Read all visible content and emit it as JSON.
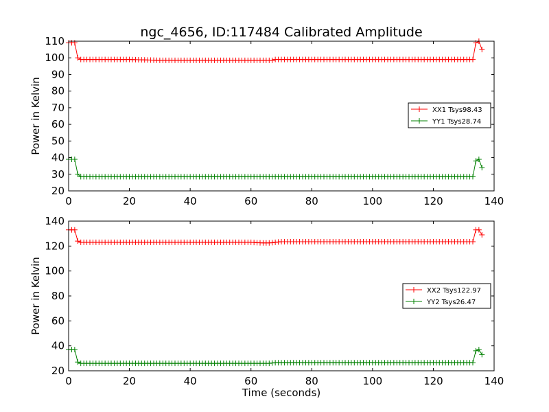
{
  "chart_data": [
    {
      "type": "line",
      "title": "ngc_4656, ID:117484 Calibrated Amplitude",
      "xlabel": "",
      "ylabel": "Power in Kelvin",
      "xlim": [
        0,
        140
      ],
      "ylim": [
        20,
        110
      ],
      "xticks": [
        "0",
        "20",
        "40",
        "60",
        "80",
        "100",
        "120",
        "140"
      ],
      "yticks": [
        "20",
        "30",
        "40",
        "50",
        "60",
        "70",
        "80",
        "90",
        "100",
        "110"
      ],
      "grid": false,
      "legend_position": "center-right",
      "series": [
        {
          "name": "XX1 Tsys98.43",
          "color": "#ff0000",
          "x": [
            0,
            1,
            2,
            3,
            4,
            5,
            10,
            20,
            30,
            40,
            50,
            60,
            67,
            68,
            70,
            80,
            90,
            100,
            110,
            120,
            130,
            133,
            134,
            135,
            136
          ],
          "y": [
            109,
            109,
            109,
            100,
            99,
            99,
            99,
            99,
            98.5,
            98.5,
            98.5,
            98.5,
            98.5,
            99,
            99,
            99,
            99,
            99,
            99,
            99,
            99,
            99,
            109,
            110,
            105
          ]
        },
        {
          "name": "YY1 Tsys28.74",
          "color": "#008000",
          "x": [
            0,
            1,
            2,
            3,
            4,
            5,
            20,
            40,
            60,
            80,
            100,
            120,
            133,
            134,
            135,
            136
          ],
          "y": [
            39,
            39,
            39,
            30,
            28.5,
            28.5,
            28.5,
            28.5,
            28.5,
            28.5,
            28.5,
            28.5,
            28.5,
            38,
            39,
            34
          ]
        }
      ]
    },
    {
      "type": "line",
      "title": "",
      "xlabel": "Time (seconds)",
      "ylabel": "Power in Kelvin",
      "xlim": [
        0,
        140
      ],
      "ylim": [
        20,
        140
      ],
      "xticks": [
        "0",
        "20",
        "40",
        "60",
        "80",
        "100",
        "120",
        "140"
      ],
      "yticks": [
        "20",
        "40",
        "60",
        "80",
        "100",
        "120",
        "140"
      ],
      "grid": false,
      "legend_position": "center-right",
      "series": [
        {
          "name": "XX2 Tsys122.97",
          "color": "#ff0000",
          "x": [
            0,
            1,
            2,
            3,
            4,
            5,
            20,
            40,
            60,
            64,
            66,
            68,
            70,
            80,
            100,
            120,
            133,
            134,
            135,
            136
          ],
          "y": [
            133,
            133,
            133,
            124,
            123,
            123,
            123,
            123,
            123,
            122.5,
            122.5,
            123,
            123.5,
            123.5,
            123.5,
            123.5,
            123.5,
            133,
            133,
            129
          ]
        },
        {
          "name": "YY2 Tsys26.47",
          "color": "#008000",
          "x": [
            0,
            1,
            2,
            3,
            4,
            5,
            20,
            40,
            60,
            66,
            68,
            80,
            100,
            120,
            133,
            134,
            135,
            136
          ],
          "y": [
            37,
            37,
            37,
            27,
            26,
            26,
            26,
            26,
            26,
            26,
            26.5,
            26.5,
            26.5,
            26.5,
            26.5,
            36,
            37,
            33
          ]
        }
      ]
    }
  ]
}
